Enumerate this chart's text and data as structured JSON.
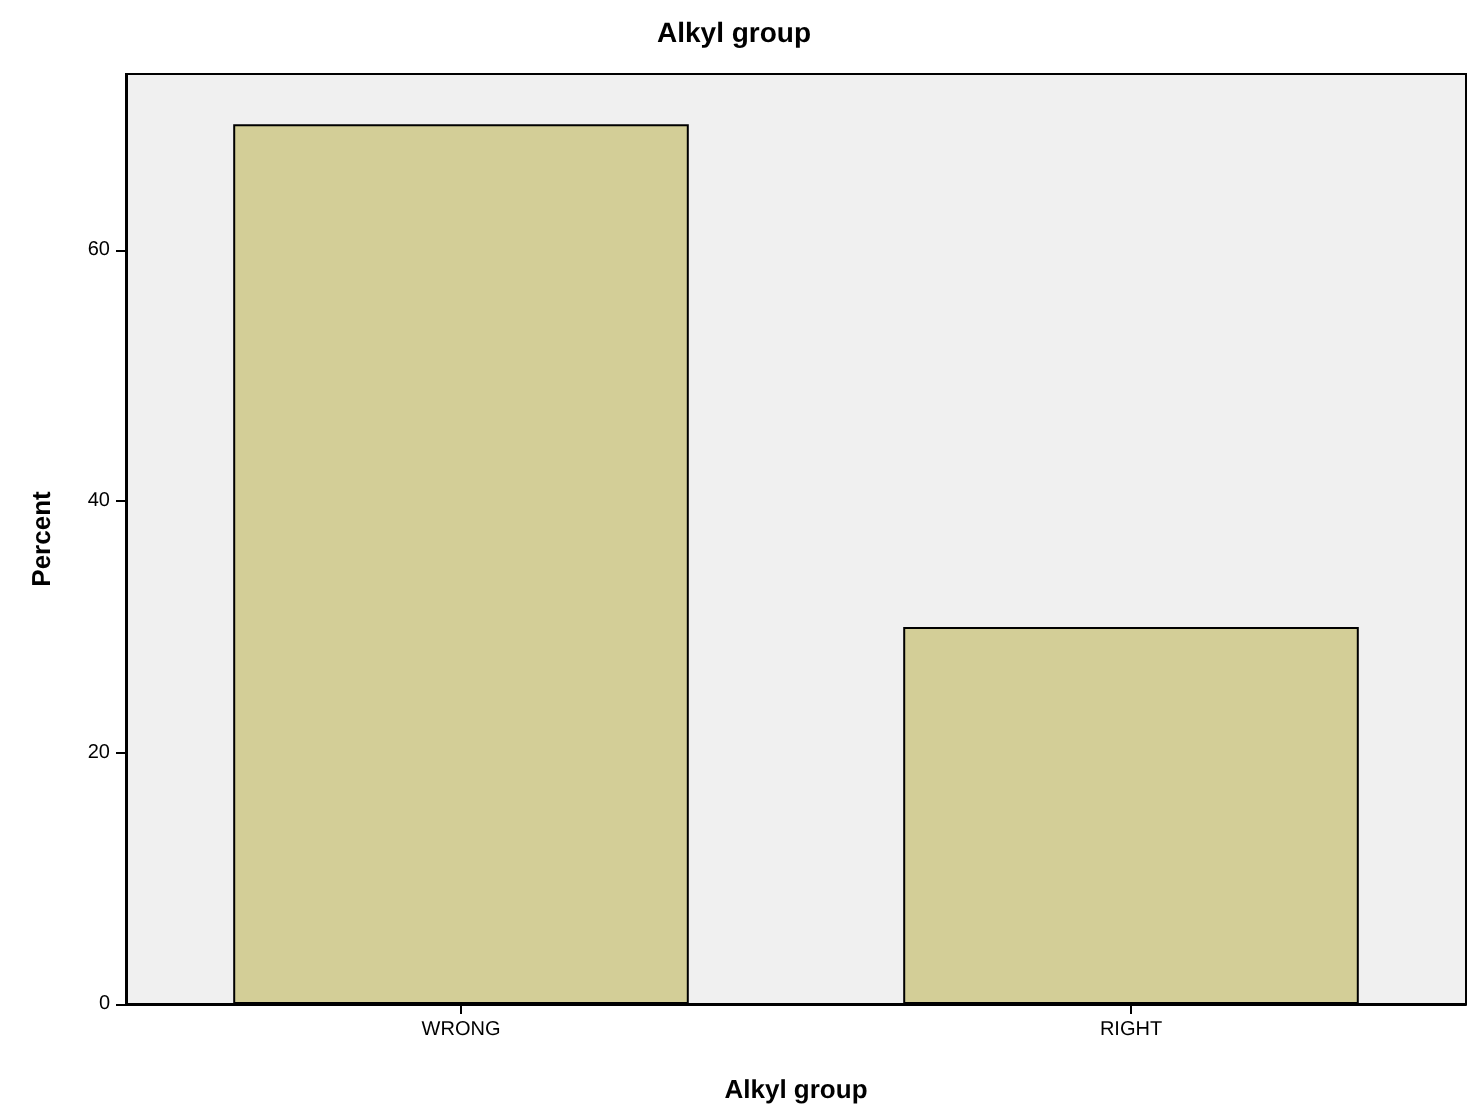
{
  "chart_data": {
    "type": "bar",
    "title": "Alkyl group",
    "xlabel": "Alkyl group",
    "ylabel": "Percent",
    "categories": [
      "WRONG",
      "RIGHT"
    ],
    "values": [
      70,
      30
    ],
    "color": "#d3ce97",
    "ylim": [
      0,
      74
    ],
    "yticks": [
      0,
      20,
      40,
      60
    ],
    "grid": false
  }
}
